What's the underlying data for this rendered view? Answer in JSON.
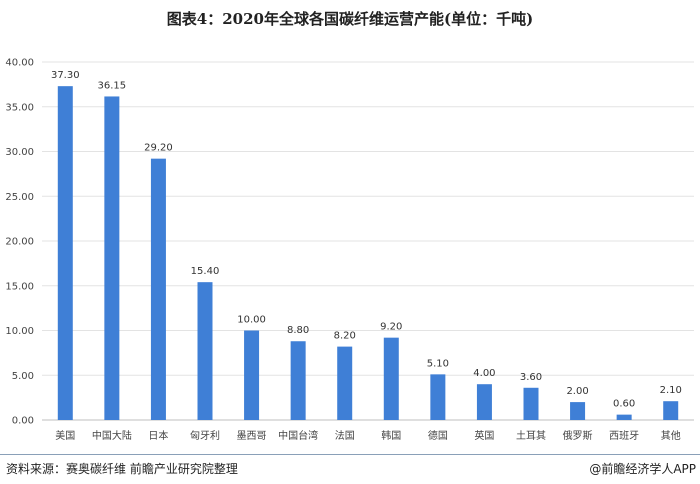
{
  "chart_data": {
    "type": "bar",
    "title": "图表4：2020年全球各国碳纤维运营产能(单位：千吨)",
    "categories": [
      "美国",
      "中国大陆",
      "日本",
      "匈牙利",
      "墨西哥",
      "中国台湾",
      "法国",
      "韩国",
      "德国",
      "英国",
      "土耳其",
      "俄罗斯",
      "西班牙",
      "其他"
    ],
    "values": [
      37.3,
      36.15,
      29.2,
      15.4,
      10.0,
      8.8,
      8.2,
      9.2,
      5.1,
      4.0,
      3.6,
      2.0,
      0.6,
      2.1
    ],
    "data_labels": [
      "37.30",
      "36.15",
      "29.20",
      "15.40",
      "10.00",
      "8.80",
      "8.20",
      "9.20",
      "5.10",
      "4.00",
      "3.60",
      "2.00",
      "0.60",
      "2.10"
    ],
    "yticks": [
      "0.00",
      "5.00",
      "10.00",
      "15.00",
      "20.00",
      "25.00",
      "30.00",
      "35.00",
      "40.00"
    ],
    "ylim": [
      0,
      40
    ],
    "grid": true,
    "bar_color": "#3f7fd6",
    "xlabel": "",
    "ylabel": ""
  },
  "footer": {
    "source": "资料来源：赛奥碳纤维 前瞻产业研究院整理",
    "brand": "@前瞻经济学人APP"
  }
}
